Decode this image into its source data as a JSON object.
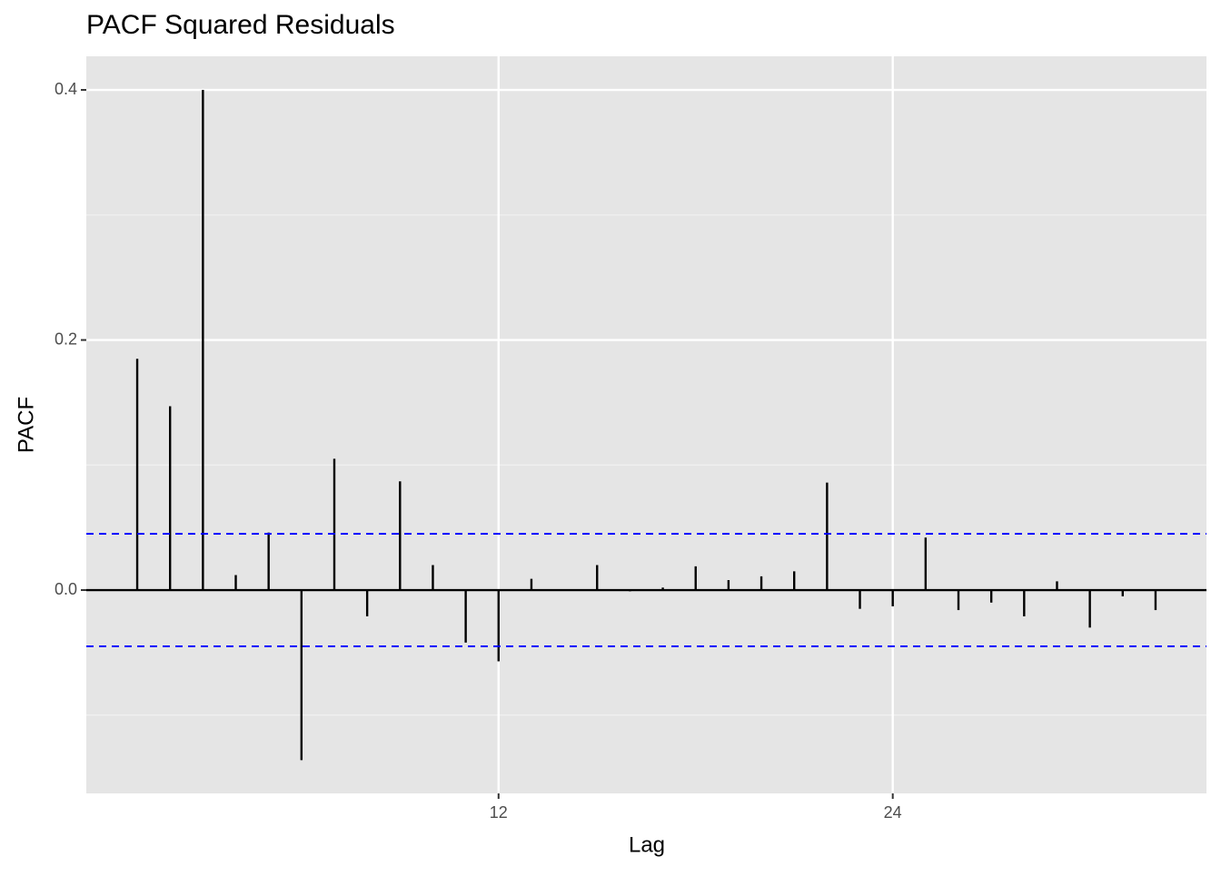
{
  "chart_data": {
    "type": "pacf",
    "title": "PACF Squared Residuals",
    "x_label": "Lag",
    "y_label": "PACF",
    "x": [
      1,
      2,
      3,
      4,
      5,
      6,
      7,
      8,
      9,
      10,
      11,
      12,
      13,
      14,
      15,
      16,
      17,
      18,
      19,
      20,
      21,
      22,
      23,
      24,
      25,
      26,
      27,
      28,
      29,
      30,
      31,
      32
    ],
    "values": [
      0.185,
      0.147,
      0.4,
      0.012,
      0.046,
      -0.136,
      0.105,
      -0.021,
      0.087,
      0.02,
      -0.042,
      -0.057,
      0.009,
      0.0,
      0.02,
      -0.001,
      0.002,
      0.019,
      0.008,
      0.011,
      0.015,
      0.086,
      -0.015,
      -0.013,
      0.042,
      -0.016,
      -0.01,
      -0.021,
      0.007,
      -0.03,
      -0.005,
      -0.016
    ],
    "color": "#000000",
    "confidence_bounds": [
      0.045,
      -0.045
    ],
    "bound_color": "#0000ff",
    "xlim": [
      -0.55,
      33.55
    ],
    "xticks": [
      12,
      24
    ],
    "ylim": [
      -0.1626,
      0.4269
    ],
    "yticks": [
      {
        "value": 0,
        "label": "0.0"
      },
      0.2,
      0.4
    ],
    "yminor": [
      -0.1,
      0.1,
      0.3
    ],
    "grid": true
  }
}
